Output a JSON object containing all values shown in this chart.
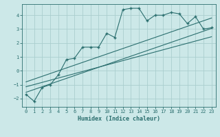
{
  "xlabel": "Humidex (Indice chaleur)",
  "ylabel": "",
  "background_color": "#cce8e8",
  "grid_color": "#aacece",
  "line_color": "#2a6e6e",
  "xlim": [
    -0.5,
    23.5
  ],
  "ylim": [
    -2.6,
    4.8
  ],
  "xticks": [
    0,
    1,
    2,
    3,
    4,
    5,
    6,
    7,
    8,
    9,
    10,
    11,
    12,
    13,
    14,
    15,
    16,
    17,
    18,
    19,
    20,
    21,
    22,
    23
  ],
  "yticks": [
    -2,
    -1,
    0,
    1,
    2,
    3,
    4
  ],
  "data_x": [
    0,
    1,
    2,
    3,
    4,
    5,
    6,
    7,
    8,
    9,
    10,
    11,
    12,
    13,
    14,
    15,
    16,
    17,
    18,
    19,
    20,
    21,
    22,
    23
  ],
  "data_y": [
    -1.7,
    -2.2,
    -1.2,
    -1.0,
    -0.3,
    0.8,
    0.9,
    1.7,
    1.7,
    1.7,
    2.7,
    2.4,
    4.4,
    4.5,
    4.5,
    3.6,
    4.0,
    4.0,
    4.2,
    4.1,
    3.4,
    3.9,
    3.0,
    3.1
  ],
  "line1_x": [
    0,
    23
  ],
  "line1_y": [
    -1.55,
    3.05
  ],
  "line2_x": [
    0,
    23
  ],
  "line2_y": [
    -0.8,
    3.8
  ],
  "line3_x": [
    0,
    23
  ],
  "line3_y": [
    -1.15,
    2.45
  ]
}
